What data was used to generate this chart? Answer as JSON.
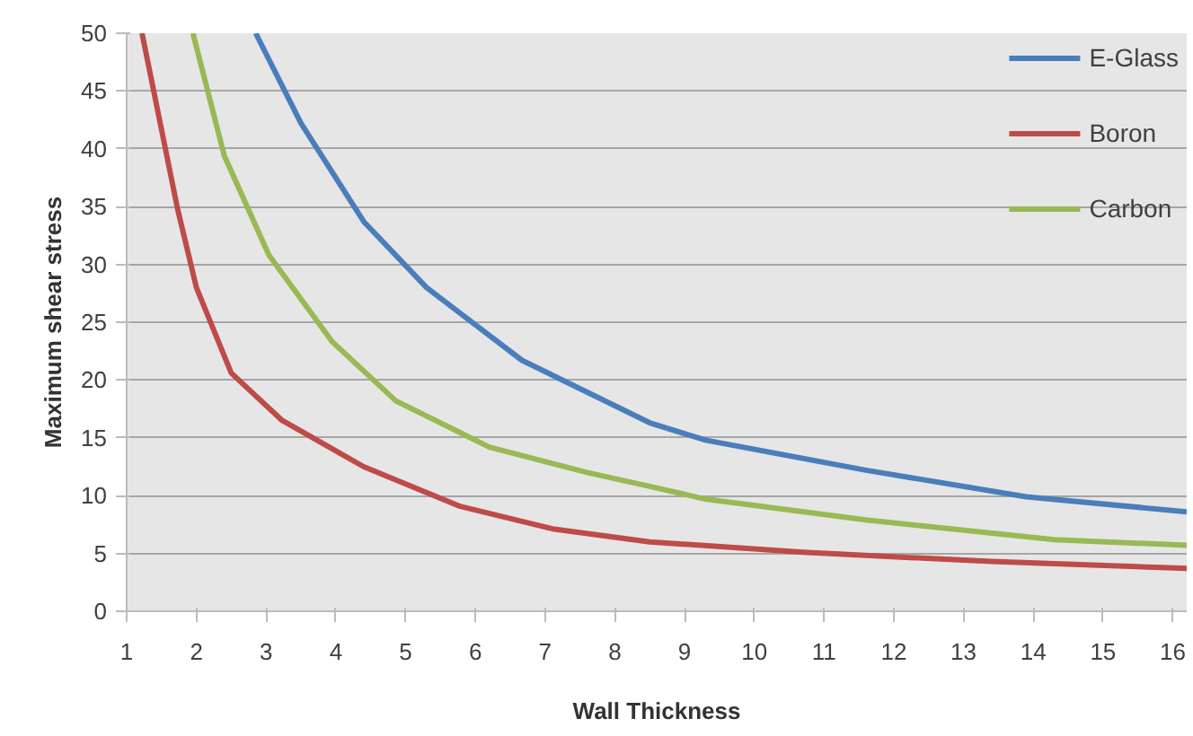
{
  "chart_data": {
    "type": "line",
    "xlabel": "Wall Thickness",
    "ylabel": "Maximum shear stress",
    "xlim": [
      1,
      16.2
    ],
    "xticks": [
      1,
      2,
      3,
      4,
      5,
      6,
      7,
      8,
      9,
      10,
      11,
      12,
      13,
      14,
      15,
      16
    ],
    "ylim": [
      0,
      50
    ],
    "yticks": [
      0,
      5,
      10,
      15,
      20,
      25,
      30,
      35,
      40,
      45,
      50
    ],
    "grid": "y",
    "legend": "top right",
    "marker": "none",
    "line_style": "solid",
    "series": [
      {
        "name": "E-Glass",
        "color": "#4a7ebb",
        "x": [
          2.85,
          3.5,
          4.4,
          5.3,
          6.67,
          8.5,
          9.3,
          11.6,
          13.9,
          16.2
        ],
        "values": [
          50,
          42.2,
          33.7,
          28,
          21.7,
          16.3,
          14.8,
          12.2,
          9.9,
          8.6
        ]
      },
      {
        "name": "Boron",
        "color": "#be4b48",
        "x": [
          1.22,
          1.73,
          2.0,
          2.5,
          3.23,
          4.4,
          5.77,
          7.13,
          8.5,
          10.7,
          13.4,
          16.2
        ],
        "values": [
          50,
          34.8,
          28,
          20.6,
          16.5,
          12.5,
          9.1,
          7.1,
          6.0,
          5.1,
          4.3,
          3.7
        ]
      },
      {
        "name": "Carbon",
        "color": "#98b954",
        "x": [
          1.95,
          2.4,
          3.04,
          3.95,
          4.86,
          6.2,
          7.6,
          8.5,
          9.3,
          11.6,
          14.3,
          16.2
        ],
        "values": [
          50,
          39.4,
          30.8,
          23.3,
          18.2,
          14.2,
          12,
          10.8,
          9.7,
          7.9,
          6.2,
          5.7
        ]
      }
    ]
  }
}
